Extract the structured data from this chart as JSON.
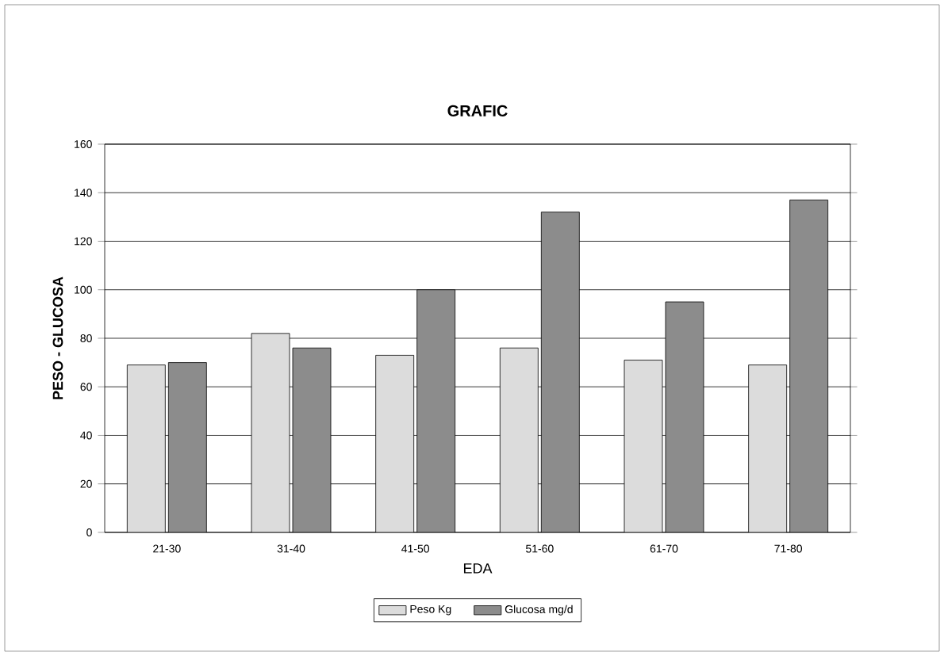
{
  "chart_data": {
    "type": "bar",
    "title": "GRAFIC",
    "xlabel": "EDA",
    "ylabel": "PESO  -  GLUCOSA",
    "categories": [
      "21-30",
      "31-40",
      "41-50",
      "51-60",
      "61-70",
      "71-80"
    ],
    "series": [
      {
        "name": "Peso Kg",
        "color": "#dcdcdc",
        "values": [
          69,
          82,
          73,
          76,
          71,
          69
        ]
      },
      {
        "name": "Glucosa mg/d",
        "color": "#8c8c8c",
        "values": [
          70,
          76,
          100,
          132,
          95,
          137
        ]
      }
    ],
    "ylim": [
      0,
      160
    ],
    "yticks": [
      0,
      20,
      40,
      60,
      80,
      100,
      120,
      140,
      160
    ],
    "grid": "y",
    "legend": "bottom"
  }
}
